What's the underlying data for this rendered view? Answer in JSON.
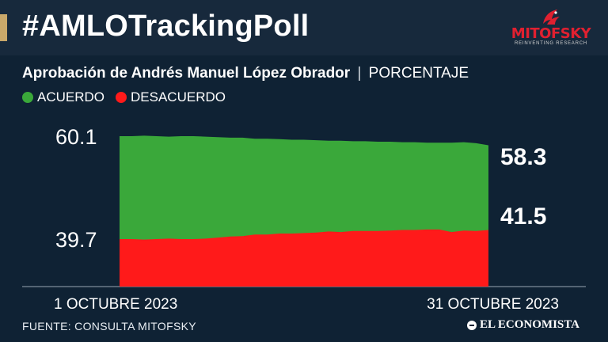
{
  "header": {
    "title": "#AMLOTrackingPoll",
    "logo_text": "MITOFSKY",
    "logo_subtext": "REINVENTING RESEARCH"
  },
  "subtitle": {
    "main": "Aprobación de Andrés Manuel López Obrador",
    "separator": "|",
    "unit": "PORCENTAJE"
  },
  "legend": [
    {
      "label": "ACUERDO",
      "color": "#3aa83a"
    },
    {
      "label": "DESACUERDO",
      "color": "#ff1a1a"
    }
  ],
  "chart_data": {
    "type": "area",
    "title": "Aprobación de Andrés Manuel López Obrador",
    "x_start_label": "1 OCTUBRE 2023",
    "x_end_label": "31 OCTUBRE 2023",
    "y_ticks": [
      "60.1",
      "39.7"
    ],
    "end_labels": [
      "58.3",
      "41.5"
    ],
    "ylim": [
      0,
      62
    ],
    "x": [
      1,
      2,
      3,
      4,
      5,
      6,
      7,
      8,
      9,
      10,
      11,
      12,
      13,
      14,
      15,
      16,
      17,
      18,
      19,
      20,
      21,
      22,
      23,
      24,
      25,
      26,
      27,
      28,
      29,
      30,
      31
    ],
    "series": [
      {
        "name": "ACUERDO",
        "color": "#3aa83a",
        "values": [
          60.1,
          60.1,
          60.2,
          60.1,
          60.0,
          60.1,
          60.1,
          60.0,
          59.9,
          59.8,
          59.8,
          59.6,
          59.6,
          59.5,
          59.4,
          59.4,
          59.3,
          59.2,
          59.2,
          59.1,
          59.1,
          59.0,
          59.0,
          58.9,
          58.9,
          58.8,
          58.8,
          58.8,
          58.9,
          58.7,
          58.3
        ]
      },
      {
        "name": "DESACUERDO",
        "color": "#ff1a1a",
        "values": [
          39.7,
          39.7,
          39.6,
          39.7,
          39.8,
          39.7,
          39.7,
          39.8,
          40.0,
          40.2,
          40.3,
          40.6,
          40.6,
          40.8,
          40.8,
          40.9,
          41.0,
          41.2,
          41.1,
          41.3,
          41.3,
          41.3,
          41.4,
          41.5,
          41.5,
          41.6,
          41.6,
          41.1,
          41.4,
          41.3,
          41.5
        ]
      }
    ],
    "grid": false,
    "legend_position": "top-left"
  },
  "footer": {
    "source": "FUENTE: CONSULTA MITOFSKY",
    "publisher": "EL ECONOMISTA"
  }
}
